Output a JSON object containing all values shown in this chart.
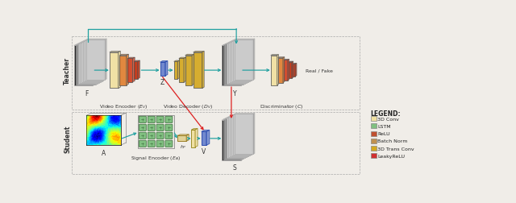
{
  "bg_color": "#f0ede8",
  "legend_items": [
    {
      "label": "3D Conv",
      "color": "#f0e0a0"
    },
    {
      "label": "LSTM",
      "color": "#80c080"
    },
    {
      "label": "ReLU",
      "color": "#c05030"
    },
    {
      "label": "Batch Norm",
      "color": "#c09050"
    },
    {
      "label": "3D Trans Conv",
      "color": "#d4a820"
    },
    {
      "label": "LeakyReLU",
      "color": "#d03030"
    }
  ],
  "teacher_label": "Teacher",
  "student_label": "Student",
  "labels": {
    "F": "F",
    "A": "A",
    "Y": "Y",
    "S": "S",
    "Z": "Z",
    "V": "V",
    "hP": "$h_P$",
    "vid_enc": "Video Encoder ($E_V$)",
    "vid_dec": "Video Decoder ($D_V$)",
    "sig_enc": "Signal Encoder ($E_A$)",
    "disc": "Discriminator ($C$)",
    "real_fake": "Real / Fake"
  },
  "arrow_color": "#20a0a0",
  "red_arrow_color": "#dd2020",
  "enc_colors": [
    "#f0e0a0",
    "#e08030",
    "#d04020",
    "#c03010"
  ],
  "dec_colors": [
    "#d4a820",
    "#d4a820",
    "#d4a820",
    "#d4a820"
  ],
  "disc_colors": [
    "#f0e0a0",
    "#e08030",
    "#d04020",
    "#c03010"
  ],
  "z_color": "#6680cc",
  "v_color": "#6680cc",
  "hp_color": "#e0d090",
  "lstm_color": "#80c080",
  "lstm_edge": "#407040",
  "vol_edge": "#aaaaaa",
  "vol_dark": "#111111",
  "vol_mid": "#888888",
  "vol_light": "#cccccc"
}
